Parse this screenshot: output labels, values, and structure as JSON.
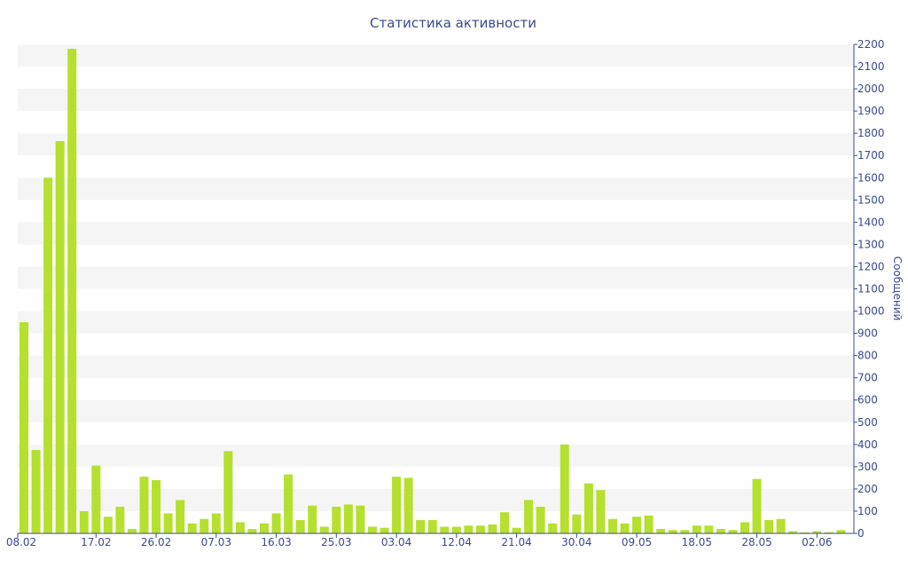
{
  "chart_data": {
    "type": "bar",
    "title": "Статистика активности",
    "ylabel": "Сообщений",
    "xlabel": "",
    "ylim": [
      0,
      2200
    ],
    "y_ticks": [
      0,
      100,
      200,
      300,
      400,
      500,
      600,
      700,
      800,
      900,
      1000,
      1100,
      1200,
      1300,
      1400,
      1500,
      1600,
      1700,
      1800,
      1900,
      2000,
      2100,
      2200
    ],
    "x_tick_labels": [
      "08.02",
      "17.02",
      "26.02",
      "07.03",
      "16.03",
      "25.03",
      "03.04",
      "12.04",
      "21.04",
      "30.04",
      "09.05",
      "18.05",
      "28.05",
      "02.06"
    ],
    "x_tick_bar_index": [
      0,
      6,
      11,
      16,
      21,
      26,
      31,
      36,
      41,
      46,
      51,
      56,
      61,
      66
    ],
    "grid": "horizontal bands",
    "bar_color": "#b5e02e",
    "series": [
      {
        "values": [
          950,
          375,
          1600,
          1765,
          2180,
          100,
          305,
          75,
          120,
          20,
          255,
          240,
          90,
          150,
          45,
          65,
          90,
          370,
          50,
          20,
          45,
          90,
          265,
          60,
          125,
          30,
          120,
          130,
          125,
          30,
          25,
          255,
          250,
          60,
          60,
          30,
          30,
          35,
          35,
          40,
          95,
          25,
          150,
          120,
          45,
          400,
          85,
          225,
          195,
          65,
          45,
          75,
          80,
          20,
          15,
          15,
          35,
          35,
          20,
          15,
          50,
          245,
          60,
          65,
          10,
          5,
          10,
          5,
          15
        ]
      }
    ]
  }
}
